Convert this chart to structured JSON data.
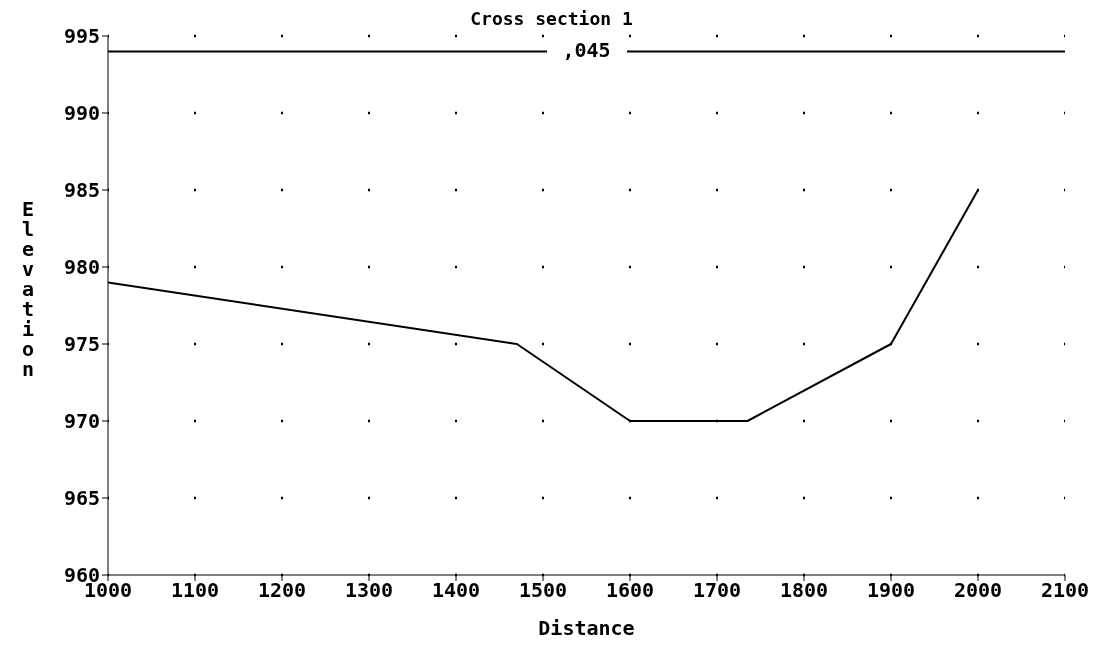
{
  "chart_data": {
    "type": "line",
    "title": "Cross section 1",
    "xlabel": "Distance",
    "ylabel": "Elevation",
    "x": [
      1000,
      1470,
      1600,
      1735,
      1900,
      2000
    ],
    "series": [
      {
        "color": "#000000",
        "values": [
          979,
          975,
          970,
          970,
          975,
          985
        ]
      }
    ],
    "xlim": [
      1000,
      2100
    ],
    "xticks": [
      1000,
      1100,
      1200,
      1300,
      1400,
      1500,
      1600,
      1700,
      1800,
      1900,
      2000,
      2100
    ],
    "ylim": [
      960,
      995
    ],
    "yticks": [
      960,
      965,
      970,
      975,
      980,
      985,
      990,
      995
    ],
    "ref_lines": [
      {
        "axis": "y",
        "value": 994,
        "color": "#000000"
      }
    ],
    "annotations": [
      ",045"
    ],
    "grid": true,
    "marker": "none",
    "line_style": "solid",
    "legend": false
  }
}
